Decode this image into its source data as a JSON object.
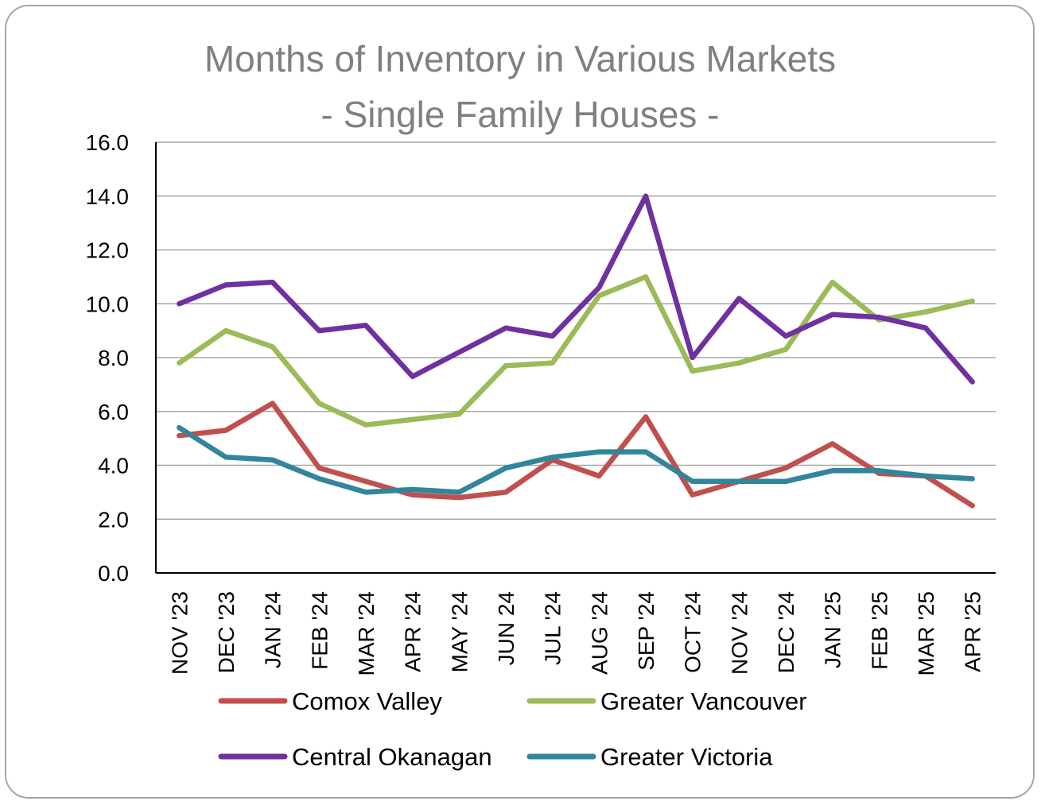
{
  "chart_data": {
    "type": "line",
    "title": [
      "Months of Inventory in Various Markets",
      "- Single Family Houses -"
    ],
    "xlabel": "",
    "ylabel": "",
    "ylim": [
      0,
      16
    ],
    "yticks": [
      "0.0",
      "2.0",
      "4.0",
      "6.0",
      "8.0",
      "10.0",
      "12.0",
      "14.0",
      "16.0"
    ],
    "grid": true,
    "legend_position": "bottom",
    "categories": [
      "NOV '23",
      "DEC '23",
      "JAN '24",
      "FEB '24",
      "MAR '24",
      "APR '24",
      "MAY '24",
      "JUN 24",
      "JUL '24",
      "AUG '24",
      "SEP '24",
      "OCT '24",
      "NOV '24",
      "DEC '24",
      "JAN '25",
      "FEB '25",
      "MAR '25",
      "APR '25"
    ],
    "series": [
      {
        "name": "Comox Valley",
        "color": "#c0504d",
        "values": [
          5.1,
          5.3,
          6.3,
          3.9,
          3.4,
          2.9,
          2.8,
          3.0,
          4.2,
          3.6,
          5.8,
          2.9,
          3.4,
          3.9,
          4.8,
          3.7,
          3.6,
          2.5
        ]
      },
      {
        "name": "Greater Vancouver",
        "color": "#9bbb59",
        "values": [
          7.8,
          9.0,
          8.4,
          6.3,
          5.5,
          5.7,
          5.9,
          7.7,
          7.8,
          10.3,
          11.0,
          7.5,
          7.8,
          8.3,
          10.8,
          9.4,
          9.7,
          10.1
        ]
      },
      {
        "name": "Central Okanagan",
        "color": "#7030a0",
        "values": [
          10.0,
          10.7,
          10.8,
          9.0,
          9.2,
          7.3,
          8.2,
          9.1,
          8.8,
          10.6,
          14.0,
          8.0,
          10.2,
          8.8,
          9.6,
          9.5,
          9.1,
          7.1
        ]
      },
      {
        "name": "Greater Victoria",
        "color": "#31859c",
        "values": [
          5.4,
          4.3,
          4.2,
          3.5,
          3.0,
          3.1,
          3.0,
          3.9,
          4.3,
          4.5,
          4.5,
          3.4,
          3.4,
          3.4,
          3.8,
          3.8,
          3.6,
          3.5
        ]
      }
    ]
  }
}
